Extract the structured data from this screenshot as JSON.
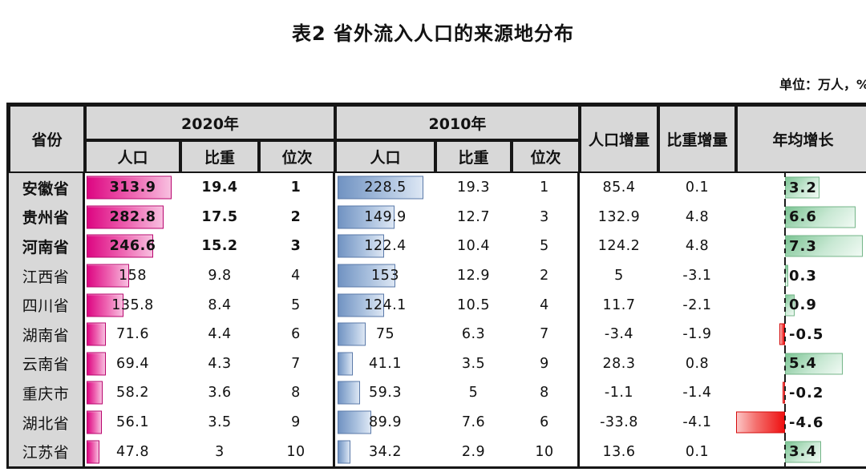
{
  "title": "表2 省外流入人口的来源地分布",
  "unit_note": "单位：万人，%",
  "colors": {
    "bar_2020_pink": "#dd0682",
    "bar_2010_blue": "#7193c2",
    "bar_growth_positive": "#7cc494",
    "bar_growth_negative": "#ee1010",
    "header_bg": "#d8d8d8",
    "border": "#161616"
  },
  "table": {
    "headers": {
      "province": "省份",
      "group_2020": "2020年",
      "group_2010": "2010年",
      "pop": "人口",
      "share": "比重",
      "rank": "位次",
      "delta_pop": "人口增量",
      "delta_share": "比重增量",
      "growth": "年均增长"
    },
    "rows": [
      {
        "province": "安徽省",
        "emphasis": true,
        "pop2020": "313.9",
        "share2020": "19.4",
        "rank2020": "1",
        "pop2010": "228.5",
        "share2010": "19.3",
        "rank2010": "1",
        "dpop": "85.4",
        "dshare": "0.1",
        "growth": "3.2"
      },
      {
        "province": "贵州省",
        "emphasis": true,
        "pop2020": "282.8",
        "share2020": "17.5",
        "rank2020": "2",
        "pop2010": "149.9",
        "share2010": "12.7",
        "rank2010": "3",
        "dpop": "132.9",
        "dshare": "4.8",
        "growth": "6.6"
      },
      {
        "province": "河南省",
        "emphasis": true,
        "pop2020": "246.6",
        "share2020": "15.2",
        "rank2020": "3",
        "pop2010": "122.4",
        "share2010": "10.4",
        "rank2010": "5",
        "dpop": "124.2",
        "dshare": "4.8",
        "growth": "7.3"
      },
      {
        "province": "江西省",
        "emphasis": false,
        "pop2020": "158",
        "share2020": "9.8",
        "rank2020": "4",
        "pop2010": "153",
        "share2010": "12.9",
        "rank2010": "2",
        "dpop": "5",
        "dshare": "-3.1",
        "growth": "0.3"
      },
      {
        "province": "四川省",
        "emphasis": false,
        "pop2020": "135.8",
        "share2020": "8.4",
        "rank2020": "5",
        "pop2010": "124.1",
        "share2010": "10.5",
        "rank2010": "4",
        "dpop": "11.7",
        "dshare": "-2.1",
        "growth": "0.9"
      },
      {
        "province": "湖南省",
        "emphasis": false,
        "pop2020": "71.6",
        "share2020": "4.4",
        "rank2020": "6",
        "pop2010": "75",
        "share2010": "6.3",
        "rank2010": "7",
        "dpop": "-3.4",
        "dshare": "-1.9",
        "growth": "-0.5"
      },
      {
        "province": "云南省",
        "emphasis": false,
        "pop2020": "69.4",
        "share2020": "4.3",
        "rank2020": "7",
        "pop2010": "41.1",
        "share2010": "3.5",
        "rank2010": "9",
        "dpop": "28.3",
        "dshare": "0.8",
        "growth": "5.4"
      },
      {
        "province": "重庆市",
        "emphasis": false,
        "pop2020": "58.2",
        "share2020": "3.6",
        "rank2020": "8",
        "pop2010": "59.3",
        "share2010": "5",
        "rank2010": "8",
        "dpop": "-1.1",
        "dshare": "-1.4",
        "growth": "-0.2"
      },
      {
        "province": "湖北省",
        "emphasis": false,
        "pop2020": "56.1",
        "share2020": "3.5",
        "rank2020": "9",
        "pop2010": "89.9",
        "share2010": "7.6",
        "rank2010": "6",
        "dpop": "-33.8",
        "dshare": "-4.1",
        "growth": "-4.6"
      },
      {
        "province": "江苏省",
        "emphasis": false,
        "pop2020": "47.8",
        "share2020": "3",
        "rank2020": "10",
        "pop2010": "34.2",
        "share2010": "2.9",
        "rank2010": "10",
        "dpop": "13.6",
        "dshare": "0.1",
        "growth": "3.4"
      }
    ]
  },
  "chart_data": {
    "type": "table",
    "title": "表2 省外流入人口的来源地分布",
    "unit": "万人，%",
    "columns": [
      "省份",
      "2020年人口",
      "2020年比重",
      "2020年位次",
      "2010年人口",
      "2010年比重",
      "2010年位次",
      "人口增量",
      "比重增量",
      "年均增长"
    ],
    "rows": [
      [
        "安徽省",
        313.9,
        19.4,
        1,
        228.5,
        19.3,
        1,
        85.4,
        0.1,
        3.2
      ],
      [
        "贵州省",
        282.8,
        17.5,
        2,
        149.9,
        12.7,
        3,
        132.9,
        4.8,
        6.6
      ],
      [
        "河南省",
        246.6,
        15.2,
        3,
        122.4,
        10.4,
        5,
        124.2,
        4.8,
        7.3
      ],
      [
        "江西省",
        158,
        9.8,
        4,
        153,
        12.9,
        2,
        5,
        -3.1,
        0.3
      ],
      [
        "四川省",
        135.8,
        8.4,
        5,
        124.1,
        10.5,
        4,
        11.7,
        -2.1,
        0.9
      ],
      [
        "湖南省",
        71.6,
        4.4,
        6,
        75,
        6.3,
        7,
        -3.4,
        -1.9,
        -0.5
      ],
      [
        "云南省",
        69.4,
        4.3,
        7,
        41.1,
        3.5,
        9,
        28.3,
        0.8,
        5.4
      ],
      [
        "重庆市",
        58.2,
        3.6,
        8,
        59.3,
        5,
        8,
        -1.1,
        -1.4,
        -0.2
      ],
      [
        "湖北省",
        56.1,
        3.5,
        9,
        89.9,
        7.6,
        6,
        -33.8,
        -4.1,
        -4.6
      ],
      [
        "江苏省",
        47.8,
        3,
        10,
        34.2,
        2.9,
        10,
        13.6,
        0.1,
        3.4
      ]
    ],
    "in_cell_bars": {
      "2020年人口": {
        "color": "pink-magenta gradient",
        "max_value": 313.9
      },
      "2010年人口": {
        "color": "blue gradient",
        "max_value": 228.5
      },
      "年均增长": {
        "positive_color": "green gradient",
        "negative_color": "red gradient",
        "zero_axis": "dotted vertical line"
      }
    },
    "notes": "Top 3 rows (安徽省, 贵州省, 河南省) rendered in bold"
  }
}
